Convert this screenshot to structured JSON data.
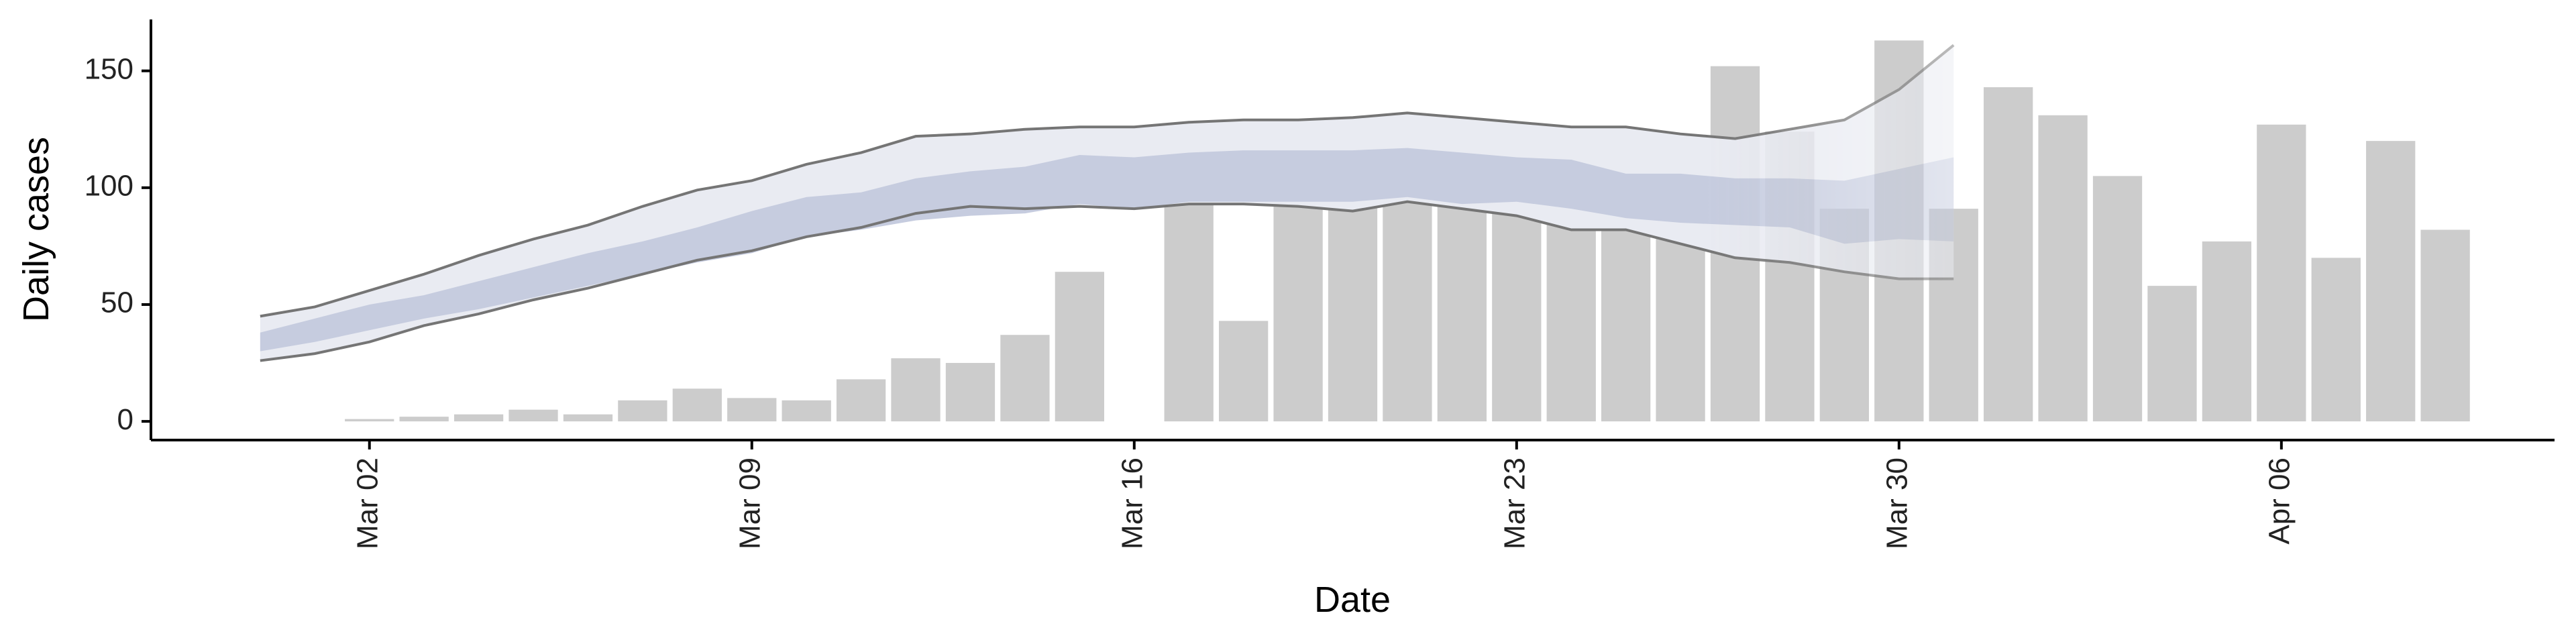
{
  "chart_data": {
    "type": "bar",
    "x_label": "Date",
    "y_label": "Daily cases",
    "x": [
      "Mar 02",
      "Mar 03",
      "Mar 04",
      "Mar 05",
      "Mar 06",
      "Mar 07",
      "Mar 08",
      "Mar 09",
      "Mar 10",
      "Mar 11",
      "Mar 12",
      "Mar 13",
      "Mar 14",
      "Mar 15",
      "Mar 16",
      "Mar 17",
      "Mar 18",
      "Mar 19",
      "Mar 20",
      "Mar 21",
      "Mar 22",
      "Mar 23",
      "Mar 24",
      "Mar 25",
      "Mar 26",
      "Mar 27",
      "Mar 28",
      "Mar 29",
      "Mar 30",
      "Mar 31",
      "Apr 01",
      "Apr 02",
      "Apr 03",
      "Apr 04",
      "Apr 05",
      "Apr 06",
      "Apr 07",
      "Apr 08",
      "Apr 09"
    ],
    "values": [
      1,
      2,
      3,
      5,
      3,
      9,
      14,
      10,
      9,
      18,
      27,
      25,
      37,
      64,
      null,
      110,
      43,
      95,
      103,
      100,
      111,
      120,
      99,
      88,
      89,
      152,
      124,
      91,
      163,
      91,
      143,
      131,
      105,
      58,
      77,
      127,
      70,
      120,
      82
    ],
    "color": "#cccccc",
    "band_x": [
      "Feb 29",
      "Mar 01",
      "Mar 02",
      "Mar 03",
      "Mar 04",
      "Mar 05",
      "Mar 06",
      "Mar 07",
      "Mar 08",
      "Mar 09",
      "Mar 10",
      "Mar 11",
      "Mar 12",
      "Mar 13",
      "Mar 14",
      "Mar 15",
      "Mar 16",
      "Mar 17",
      "Mar 18",
      "Mar 19",
      "Mar 20",
      "Mar 21",
      "Mar 22",
      "Mar 23",
      "Mar 24",
      "Mar 25",
      "Mar 26",
      "Mar 27",
      "Mar 28",
      "Mar 29",
      "Mar 30",
      "Mar 31"
    ],
    "bands": [
      {
        "upper": [
          45,
          49,
          56,
          63,
          71,
          78,
          84,
          92,
          99,
          103,
          110,
          115,
          122,
          123,
          125,
          126,
          126,
          128,
          129,
          129,
          130,
          132,
          130,
          128,
          126,
          126,
          123,
          121,
          125,
          129,
          142,
          161
        ],
        "lower": [
          26,
          29,
          34,
          41,
          46,
          52,
          57,
          63,
          69,
          73,
          79,
          83,
          89,
          92,
          91,
          92,
          91,
          93,
          93,
          92,
          90,
          94,
          91,
          88,
          82,
          82,
          76,
          70,
          68,
          64,
          61,
          61
        ],
        "fill": "#e9ebf2",
        "line_color": "#757575"
      },
      {
        "upper": [
          38,
          44,
          50,
          54,
          60,
          66,
          72,
          77,
          83,
          90,
          96,
          98,
          104,
          107,
          109,
          114,
          113,
          115,
          116,
          116,
          116,
          117,
          115,
          113,
          112,
          106,
          106,
          104,
          104,
          103,
          108,
          113
        ],
        "lower": [
          30,
          34,
          39,
          44,
          48,
          53,
          58,
          63,
          68,
          72,
          79,
          82,
          86,
          88,
          89,
          93,
          91,
          94,
          94,
          94,
          94,
          96,
          93,
          94,
          91,
          87,
          85,
          84,
          83,
          76,
          78,
          77
        ],
        "fill": "#c6ccdf"
      }
    ],
    "xlim": [
      "Feb 27",
      "Apr 11"
    ],
    "xticks": [
      "Mar 02",
      "Mar 09",
      "Mar 16",
      "Mar 23",
      "Mar 30",
      "Apr 06"
    ],
    "ylim": [
      -8,
      172
    ],
    "yticks": [
      0,
      50,
      100,
      150
    ]
  }
}
